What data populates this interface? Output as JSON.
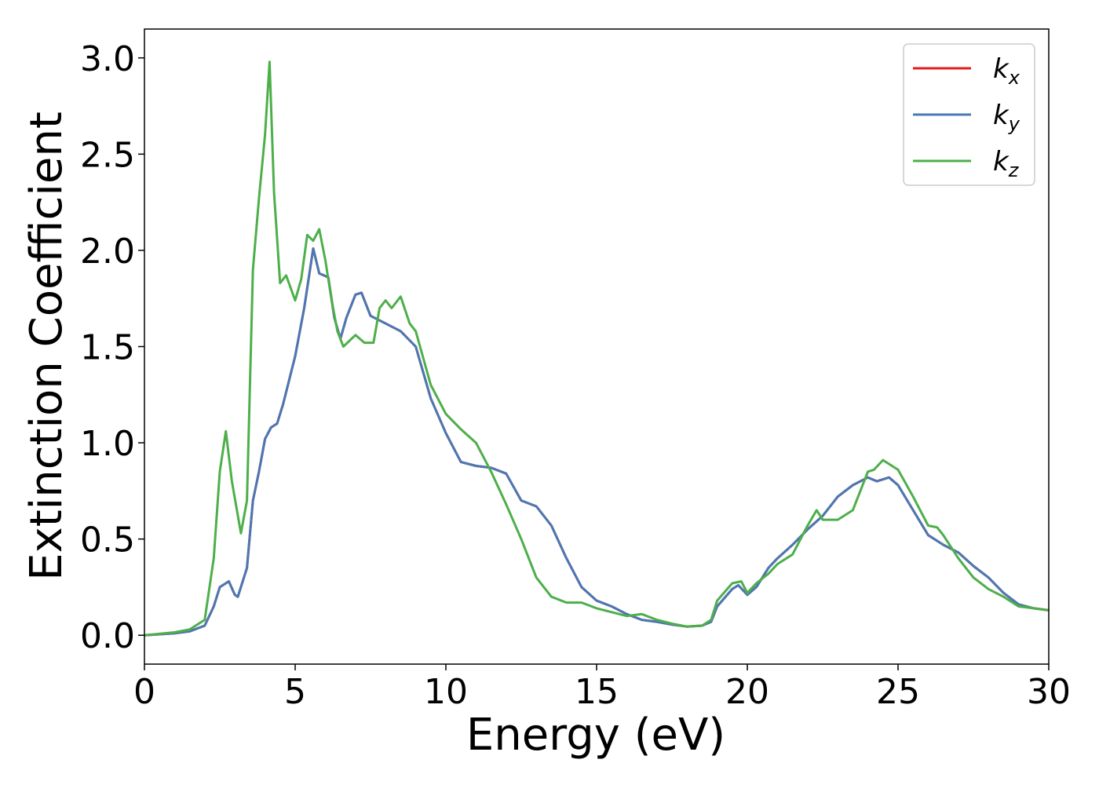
{
  "chart_data": {
    "type": "line",
    "title": "",
    "xlabel": "Energy (eV)",
    "ylabel": "Extinction Coefficient",
    "xlim": [
      0,
      30
    ],
    "ylim": [
      -0.15,
      3.15
    ],
    "xticks": [
      0,
      5,
      10,
      15,
      20,
      25,
      30
    ],
    "xtick_labels": [
      "0",
      "5",
      "10",
      "15",
      "20",
      "25",
      "30"
    ],
    "yticks": [
      0.0,
      0.5,
      1.0,
      1.5,
      2.0,
      2.5,
      3.0
    ],
    "ytick_labels": [
      "0.0",
      "0.5",
      "1.0",
      "1.5",
      "2.0",
      "2.5",
      "3.0"
    ],
    "grid": false,
    "legend_position": "top-right",
    "series": [
      {
        "name": "k",
        "subscript": "x",
        "color": "#e41a1c",
        "points": [
          [
            0,
            0.0
          ],
          [
            1,
            0.01
          ],
          [
            1.5,
            0.02
          ],
          [
            2,
            0.05
          ],
          [
            2.3,
            0.15
          ],
          [
            2.5,
            0.25
          ],
          [
            2.7,
            0.27
          ],
          [
            2.8,
            0.28
          ],
          [
            3.0,
            0.21
          ],
          [
            3.1,
            0.2
          ],
          [
            3.4,
            0.35
          ],
          [
            3.6,
            0.7
          ],
          [
            3.8,
            0.85
          ],
          [
            4.0,
            1.02
          ],
          [
            4.2,
            1.08
          ],
          [
            4.4,
            1.1
          ],
          [
            4.6,
            1.2
          ],
          [
            5.0,
            1.45
          ],
          [
            5.3,
            1.7
          ],
          [
            5.6,
            2.01
          ],
          [
            5.8,
            1.88
          ],
          [
            6.1,
            1.86
          ],
          [
            6.3,
            1.65
          ],
          [
            6.5,
            1.54
          ],
          [
            6.7,
            1.65
          ],
          [
            7.0,
            1.77
          ],
          [
            7.2,
            1.78
          ],
          [
            7.5,
            1.66
          ],
          [
            8.0,
            1.62
          ],
          [
            8.5,
            1.58
          ],
          [
            9.0,
            1.5
          ],
          [
            9.5,
            1.23
          ],
          [
            10.0,
            1.05
          ],
          [
            10.5,
            0.9
          ],
          [
            11.0,
            0.88
          ],
          [
            11.5,
            0.87
          ],
          [
            12.0,
            0.84
          ],
          [
            12.5,
            0.7
          ],
          [
            13.0,
            0.67
          ],
          [
            13.5,
            0.57
          ],
          [
            14.0,
            0.4
          ],
          [
            14.5,
            0.25
          ],
          [
            15.0,
            0.18
          ],
          [
            15.5,
            0.15
          ],
          [
            16.0,
            0.11
          ],
          [
            16.5,
            0.08
          ],
          [
            17.0,
            0.07
          ],
          [
            17.5,
            0.055
          ],
          [
            18.0,
            0.045
          ],
          [
            18.5,
            0.05
          ],
          [
            18.8,
            0.07
          ],
          [
            19.0,
            0.15
          ],
          [
            19.5,
            0.24
          ],
          [
            19.7,
            0.26
          ],
          [
            20.0,
            0.21
          ],
          [
            20.3,
            0.25
          ],
          [
            20.7,
            0.35
          ],
          [
            21.0,
            0.4
          ],
          [
            21.5,
            0.47
          ],
          [
            22.0,
            0.55
          ],
          [
            22.5,
            0.62
          ],
          [
            23.0,
            0.72
          ],
          [
            23.5,
            0.78
          ],
          [
            24.0,
            0.82
          ],
          [
            24.3,
            0.8
          ],
          [
            24.7,
            0.82
          ],
          [
            25.0,
            0.78
          ],
          [
            25.5,
            0.65
          ],
          [
            26.0,
            0.52
          ],
          [
            26.5,
            0.47
          ],
          [
            27.0,
            0.43
          ],
          [
            27.5,
            0.36
          ],
          [
            28.0,
            0.3
          ],
          [
            28.5,
            0.22
          ],
          [
            29.0,
            0.16
          ],
          [
            29.5,
            0.14
          ],
          [
            30.0,
            0.13
          ]
        ]
      },
      {
        "name": "k",
        "subscript": "y",
        "color": "#4a78b4",
        "points": [
          [
            0,
            0.0
          ],
          [
            1,
            0.01
          ],
          [
            1.5,
            0.02
          ],
          [
            2,
            0.05
          ],
          [
            2.3,
            0.15
          ],
          [
            2.5,
            0.25
          ],
          [
            2.7,
            0.27
          ],
          [
            2.8,
            0.28
          ],
          [
            3.0,
            0.21
          ],
          [
            3.1,
            0.2
          ],
          [
            3.4,
            0.35
          ],
          [
            3.6,
            0.7
          ],
          [
            3.8,
            0.85
          ],
          [
            4.0,
            1.02
          ],
          [
            4.2,
            1.08
          ],
          [
            4.4,
            1.1
          ],
          [
            4.6,
            1.2
          ],
          [
            5.0,
            1.45
          ],
          [
            5.3,
            1.7
          ],
          [
            5.6,
            2.01
          ],
          [
            5.8,
            1.88
          ],
          [
            6.1,
            1.86
          ],
          [
            6.3,
            1.65
          ],
          [
            6.5,
            1.54
          ],
          [
            6.7,
            1.65
          ],
          [
            7.0,
            1.77
          ],
          [
            7.2,
            1.78
          ],
          [
            7.5,
            1.66
          ],
          [
            8.0,
            1.62
          ],
          [
            8.5,
            1.58
          ],
          [
            9.0,
            1.5
          ],
          [
            9.5,
            1.23
          ],
          [
            10.0,
            1.05
          ],
          [
            10.5,
            0.9
          ],
          [
            11.0,
            0.88
          ],
          [
            11.5,
            0.87
          ],
          [
            12.0,
            0.84
          ],
          [
            12.5,
            0.7
          ],
          [
            13.0,
            0.67
          ],
          [
            13.5,
            0.57
          ],
          [
            14.0,
            0.4
          ],
          [
            14.5,
            0.25
          ],
          [
            15.0,
            0.18
          ],
          [
            15.5,
            0.15
          ],
          [
            16.0,
            0.11
          ],
          [
            16.5,
            0.08
          ],
          [
            17.0,
            0.07
          ],
          [
            17.5,
            0.055
          ],
          [
            18.0,
            0.045
          ],
          [
            18.5,
            0.05
          ],
          [
            18.8,
            0.07
          ],
          [
            19.0,
            0.15
          ],
          [
            19.5,
            0.24
          ],
          [
            19.7,
            0.26
          ],
          [
            20.0,
            0.21
          ],
          [
            20.3,
            0.25
          ],
          [
            20.7,
            0.35
          ],
          [
            21.0,
            0.4
          ],
          [
            21.5,
            0.47
          ],
          [
            22.0,
            0.55
          ],
          [
            22.5,
            0.62
          ],
          [
            23.0,
            0.72
          ],
          [
            23.5,
            0.78
          ],
          [
            24.0,
            0.82
          ],
          [
            24.3,
            0.8
          ],
          [
            24.7,
            0.82
          ],
          [
            25.0,
            0.78
          ],
          [
            25.5,
            0.65
          ],
          [
            26.0,
            0.52
          ],
          [
            26.5,
            0.47
          ],
          [
            27.0,
            0.43
          ],
          [
            27.5,
            0.36
          ],
          [
            28.0,
            0.3
          ],
          [
            28.5,
            0.22
          ],
          [
            29.0,
            0.16
          ],
          [
            29.5,
            0.14
          ],
          [
            30.0,
            0.13
          ]
        ]
      },
      {
        "name": "k",
        "subscript": "z",
        "color": "#4daf4a",
        "points": [
          [
            0,
            0.0
          ],
          [
            1,
            0.015
          ],
          [
            1.5,
            0.03
          ],
          [
            2,
            0.08
          ],
          [
            2.3,
            0.4
          ],
          [
            2.5,
            0.85
          ],
          [
            2.7,
            1.06
          ],
          [
            2.9,
            0.8
          ],
          [
            3.2,
            0.53
          ],
          [
            3.4,
            0.7
          ],
          [
            3.6,
            1.9
          ],
          [
            3.8,
            2.27
          ],
          [
            4.0,
            2.6
          ],
          [
            4.15,
            2.98
          ],
          [
            4.3,
            2.3
          ],
          [
            4.5,
            1.83
          ],
          [
            4.7,
            1.87
          ],
          [
            5.0,
            1.74
          ],
          [
            5.2,
            1.85
          ],
          [
            5.4,
            2.08
          ],
          [
            5.6,
            2.05
          ],
          [
            5.8,
            2.11
          ],
          [
            6.0,
            1.95
          ],
          [
            6.2,
            1.75
          ],
          [
            6.4,
            1.58
          ],
          [
            6.6,
            1.5
          ],
          [
            7.0,
            1.56
          ],
          [
            7.3,
            1.52
          ],
          [
            7.6,
            1.52
          ],
          [
            7.8,
            1.7
          ],
          [
            8.0,
            1.74
          ],
          [
            8.2,
            1.7
          ],
          [
            8.5,
            1.76
          ],
          [
            8.8,
            1.62
          ],
          [
            9.0,
            1.58
          ],
          [
            9.5,
            1.3
          ],
          [
            10.0,
            1.15
          ],
          [
            10.5,
            1.07
          ],
          [
            11.0,
            1.0
          ],
          [
            11.5,
            0.85
          ],
          [
            12.0,
            0.68
          ],
          [
            12.5,
            0.5
          ],
          [
            13.0,
            0.3
          ],
          [
            13.5,
            0.2
          ],
          [
            14.0,
            0.17
          ],
          [
            14.5,
            0.17
          ],
          [
            15.0,
            0.14
          ],
          [
            15.5,
            0.12
          ],
          [
            16.0,
            0.1
          ],
          [
            16.5,
            0.11
          ],
          [
            17.0,
            0.08
          ],
          [
            17.5,
            0.06
          ],
          [
            18.0,
            0.045
          ],
          [
            18.5,
            0.05
          ],
          [
            18.8,
            0.08
          ],
          [
            19.0,
            0.18
          ],
          [
            19.5,
            0.27
          ],
          [
            19.8,
            0.28
          ],
          [
            20.0,
            0.22
          ],
          [
            20.3,
            0.27
          ],
          [
            20.7,
            0.32
          ],
          [
            21.0,
            0.37
          ],
          [
            21.5,
            0.42
          ],
          [
            22.0,
            0.57
          ],
          [
            22.3,
            0.65
          ],
          [
            22.5,
            0.6
          ],
          [
            23.0,
            0.6
          ],
          [
            23.5,
            0.65
          ],
          [
            24.0,
            0.85
          ],
          [
            24.2,
            0.86
          ],
          [
            24.5,
            0.91
          ],
          [
            25.0,
            0.86
          ],
          [
            25.5,
            0.72
          ],
          [
            26.0,
            0.57
          ],
          [
            26.3,
            0.56
          ],
          [
            26.5,
            0.52
          ],
          [
            27.0,
            0.4
          ],
          [
            27.5,
            0.3
          ],
          [
            28.0,
            0.24
          ],
          [
            28.5,
            0.2
          ],
          [
            29.0,
            0.15
          ],
          [
            29.5,
            0.14
          ],
          [
            30.0,
            0.13
          ]
        ]
      }
    ]
  }
}
